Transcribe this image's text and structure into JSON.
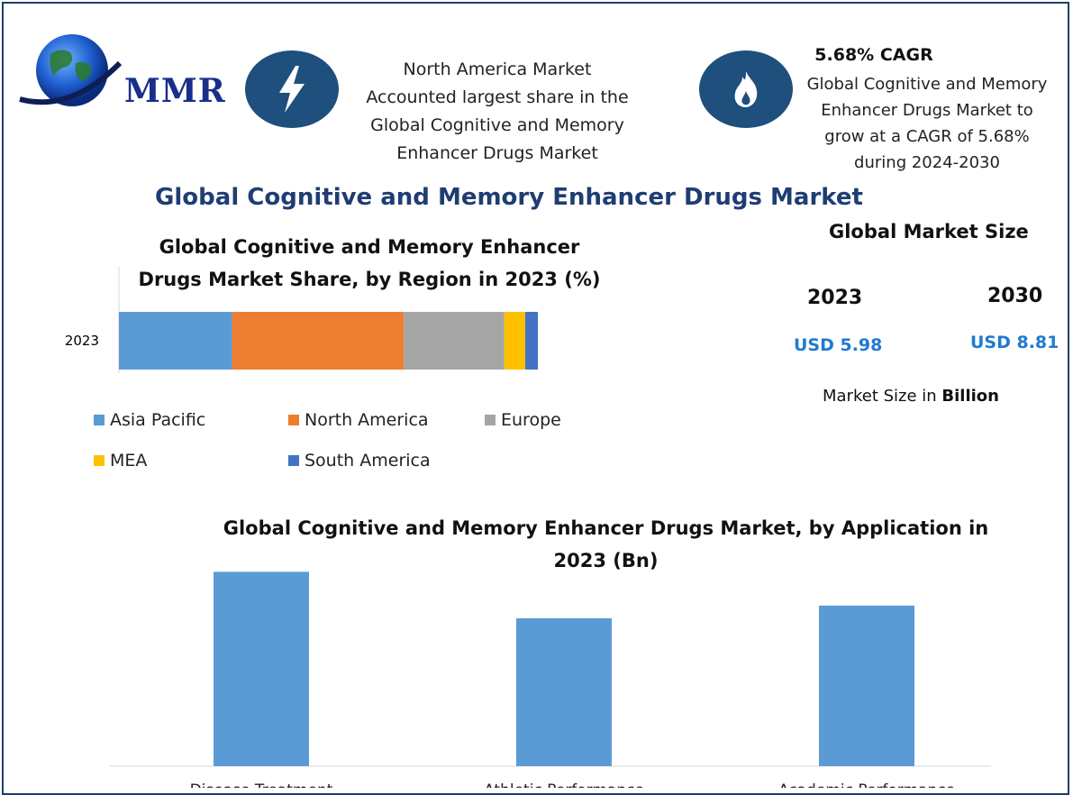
{
  "brand": {
    "logo_text": "MMR"
  },
  "highlight": {
    "region_text": [
      "North America Market",
      "Accounted largest share in the",
      "Global Cognitive and Memory",
      "Enhancer Drugs Market"
    ],
    "cagr_title": "5.68% CAGR",
    "cagr_text": [
      "Global Cognitive and Memory",
      "Enhancer Drugs Market to",
      "grow at a CAGR of 5.68%",
      "during 2024-2030"
    ]
  },
  "main_title": "Global Cognitive and Memory Enhancer Drugs Market",
  "market_size": {
    "heading": "Global Market Size",
    "years": [
      "2023",
      "2030"
    ],
    "values": [
      "USD 5.98",
      "USD 8.81"
    ],
    "note_prefix": "Market Size in ",
    "note_unit": "Billion"
  },
  "colors": {
    "accent": "#1e4f7d",
    "title": "#1f3d73",
    "usd": "#1f7ad1"
  },
  "chart_data": [
    {
      "type": "bar",
      "orientation": "horizontal-stacked",
      "title": [
        "Global Cognitive and Memory Enhancer",
        "Drugs Market Share, by Region in 2023 (%)"
      ],
      "categories": [
        "2023"
      ],
      "series": [
        {
          "name": "Asia Pacific",
          "color": "#5b9bd5",
          "values": [
            27
          ]
        },
        {
          "name": "North America",
          "color": "#ed7d31",
          "values": [
            41
          ]
        },
        {
          "name": "Europe",
          "color": "#a5a5a5",
          "values": [
            24
          ]
        },
        {
          "name": "MEA",
          "color": "#ffc000",
          "values": [
            5
          ]
        },
        {
          "name": "South America",
          "color": "#4472c4",
          "values": [
            3
          ]
        }
      ],
      "xlim": [
        0,
        100
      ],
      "legend": "bottom"
    },
    {
      "type": "bar",
      "title": [
        "Global Cognitive and Memory Enhancer Drugs Market, by Application in",
        "2023 (Bn)"
      ],
      "categories": [
        "Disease Treatment",
        "Athletic Performance",
        "Academic Performance"
      ],
      "values": [
        2.3,
        1.75,
        1.9
      ],
      "color": "#5b9bd5",
      "ylim": [
        0,
        2.4
      ]
    }
  ]
}
